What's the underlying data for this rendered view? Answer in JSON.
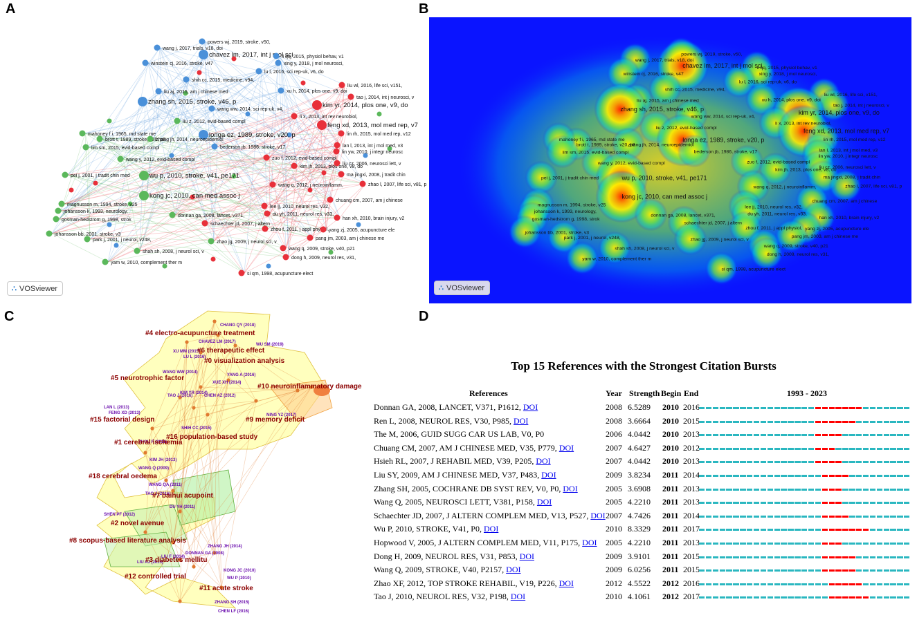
{
  "panel_labels": [
    "A",
    "B",
    "C",
    "D"
  ],
  "vosviewer_label": "VOSviewer",
  "colors": {
    "blue": "#4a90d9",
    "red": "#e8303a",
    "green": "#5bb85b",
    "burst_red": "#ff0000",
    "burst_cyan": "#2ab7c0",
    "cluster_label": "#8b0000",
    "node_label": "#6a0dad"
  },
  "chart_data": [
    {
      "type": "network",
      "panel": "A",
      "node_labels": [
        "powers wj, 2019, stroke, v50,",
        "wang j, 2017, trials, v18, doi",
        "chavez lm, 2017, int j mol sci",
        "li qq, 2015, physiol behav, v1",
        "xing y, 2018, j mol neurosci,",
        "winstein cj, 2016, stroke, v47",
        "lu l, 2016, sci rep-uk, v6, do",
        "shih cc, 2015, medicine, v94,",
        "liu wl, 2016, life sci, v151,",
        "xu h, 2014, plos one, v9, doi",
        "tao j, 2014, int j neurosci, v",
        "liu aj, 2015, am j chinese med",
        "zhang sh, 2015, stroke, v46, p",
        "kim yr, 2014, plos one, v9, do",
        "wang ww, 2014, sci rep-uk, v4,",
        "li x, 2013, int rev neurobiol,",
        "brott t, 1989, stroke, v20, p8",
        "liu z, 2012, evid-based compl",
        "feng xd, 2013, mol med rep, v7",
        "mahoney f i, 1965, md state me",
        "longa ez, 1989, stroke, v20, p",
        "lin rh, 2015, mol med rep, v12",
        "zhang jh, 2014, neuroepidemiol",
        "lan l, 2013, int j mol med, v3",
        "lim sm, 2015, evid-based compl",
        "bederson jb, 1986, stroke, v17",
        "lin yw, 2010, j integr neurosc",
        "wang y, 2012, evid-based compl",
        "zuo f, 2012, evid-based compl",
        "kim jh, 2013, plos one, v8, do",
        "liu cz, 2006, neurosci lett, v",
        "pei j, 2001, j tradit chin med",
        "ma jingxi, 2008, j tradit chin",
        "wu p, 2010, stroke, v41, pe171",
        "zhao l, 2007, life sci, v81, p",
        "wang q, 2012, j neuroinflamm,",
        "kong jc, 2010, can med assoc j",
        "chuang cm, 2007, am j chinese",
        "magnusson m, 1994, stroke, v25",
        "johansson k, 1993, neurology,",
        "donnan ga, 2008, lancet, v371,",
        "lee jj, 2010, neurol res, v32,",
        "gosman-hedstrom g, 1998, strok",
        "du yh, 2011, neurol res, v33,",
        "han xh, 2010, brain injury, v2",
        "johansson bb, 2001, stroke, v3",
        "schaechter jd, 2007, j altern",
        "zhou f, 2011, j appl physiol,",
        "yang zj, 2005, acupuncture ele",
        "park j, 2001, j neurol, v248,",
        "zhao jg, 2009, j neurol sci, v",
        "pang jm, 2003, am j chinese me",
        "shah sh, 2008, j neurol sci, v",
        "wang q, 2009, stroke, v40, p21",
        "dong h, 2009, neurol res, v31,",
        "yam w, 2010, complement ther m",
        "si qm, 1998, acupuncture elect"
      ]
    },
    {
      "type": "heatmap",
      "panel": "B",
      "node_labels": [
        "powers wj, 2019, stroke, v50,",
        "wang j, 2017, trials, v18, doi",
        "chavez lm, 2017, int j mol sci",
        "li qq, 2015, physiol behav, v1",
        "xing y, 2018, j mol neurosci,",
        "winstein cj, 2016, stroke, v47",
        "lu l, 2016, sci rep-uk, v6, do",
        "shih cc, 2015, medicine, v94,",
        "liu wl, 2016, life sci, v151,",
        "xu h, 2014, plos one, v9, doi",
        "tao j, 2014, int j neurosci, v",
        "liu aj, 2015, am j chinese med",
        "zhang sh, 2015, stroke, v46, p",
        "kim yr, 2014, plos one, v9, do",
        "wang ww, 2014, sci rep-uk, v4,",
        "li x, 2013, int rev neurobiol,",
        "brott t, 1989, stroke, v20, p8",
        "liu z, 2012, evid-based compl",
        "feng xd, 2013, mol med rep, v7",
        "mahoney f i, 1965, md state me",
        "longa ez, 1989, stroke, v20, p",
        "lin rh, 2015, mol med rep, v12",
        "zhang jh, 2014, neuroepidemiol",
        "lan l, 2013, int j mol med, v3",
        "lim sm, 2015, evid-based compl",
        "bederson jb, 1986, stroke, v17",
        "lin yw, 2010, j integr neurosc",
        "wang y, 2012, evid-based compl",
        "zuo f, 2012, evid-based compl",
        "kim jh, 2013, plos one, v8, do",
        "liu cz, 2006, neurosci lett, v",
        "pei j, 2001, j tradit chin med",
        "ma jingxi, 2008, j tradit chin",
        "wu p, 2010, stroke, v41, pe171",
        "zhao l, 2007, life sci, v81, p",
        "wang q, 2012, j neuroinflamm,",
        "kong jc, 2010, can med assoc j",
        "chuang cm, 2007, am j chinese",
        "magnusson m, 1994, stroke, v25",
        "johansson k, 1993, neurology,",
        "donnan ga, 2008, lancet, v371,",
        "lee jj, 2010, neurol res, v32,",
        "gosman-hedstrom g, 1998, strok",
        "du yh, 2011, neurol res, v33,",
        "han xh, 2010, brain injury, v2",
        "johansson bb, 2001, stroke, v3",
        "schaechter jd, 2007, j altern",
        "zhou f, 2011, j appl physiol,",
        "yang zj, 2005, acupuncture ele",
        "park j, 2001, j neurol, v248,",
        "zhao jg, 2009, j neurol sci, v",
        "pang jm, 2003, am j chinese me",
        "shah sh, 2008, j neurol sci, v",
        "wang q, 2009, stroke, v40, p21",
        "dong h, 2009, neurol res, v31,",
        "yam w, 2010, complement ther m",
        "si qm, 1998, acupuncture elect"
      ]
    },
    {
      "type": "network",
      "panel": "C",
      "cluster_labels": [
        "#4 electro-acupuncture treatment",
        "#6 therapeutic effect",
        "#0 visualization analysis",
        "#5 neurotrophic factor",
        "#10 neuroinflammatory damage",
        "#9 memory deficit",
        "#15 factorial design",
        "#16 population-based study",
        "#1 cerebral ischemia",
        "#18 cerebral oedema",
        "#7 baihui acupoint",
        "#2 novel avenue",
        "#8 scopus-based literature analysis",
        "#3 diabetes mellitu",
        "#12 controlled trial",
        "#11 acute stroke"
      ],
      "node_labels": [
        "CHANG QY (2018)",
        "CHAVEZ LM (2017)",
        "WU SM (2019)",
        "XU MM (2015)",
        "LU L (2016)",
        "WANG WW (2014)",
        "YANG A (2016)",
        "XUE XH (2014)",
        "KIM YR (2014)",
        "TAO J (2016)",
        "CHEN AZ (2012)",
        "NING YZ (2017)",
        "LAN L (2013)",
        "FENG XD (2013)",
        "SHIH CC (2015)",
        "ZHOU F (2011)",
        "KIM JH (2013)",
        "WANG Q (2009)",
        "WANG QA (2011)",
        "TAO J (2016)",
        "DU YH (2011)",
        "SHEN PF (2012)",
        "ZHANG JH (2014)",
        "DONNAN GA (2008)",
        "LIU F (2014)",
        "LIU AJ (2015)",
        "KONG JC (2010)",
        "WU P (2010)",
        "ZHANG SH (2015)",
        "CHEN LF (2016)"
      ]
    },
    {
      "type": "table",
      "panel": "D",
      "title": "Top 15 References with the Strongest Citation Bursts",
      "columns": [
        "References",
        "Year",
        "Strength",
        "Begin",
        "End",
        "1993 - 2023"
      ],
      "range": [
        1993,
        2023
      ],
      "rows": [
        {
          "ref": "Donnan GA, 2008, LANCET, V371, P1612,",
          "doi": "DOI",
          "year": "2008",
          "strength": "6.5289",
          "begin": "2010",
          "end": "2016"
        },
        {
          "ref": "Ren L, 2008, NEUROL RES, V30, P985,",
          "doi": "DOI",
          "year": "2008",
          "strength": "3.6664",
          "begin": "2010",
          "end": "2015"
        },
        {
          "ref": "The M, 2006, GUID SUGG CAR US LAB, V0, P0",
          "doi": "",
          "year": "2006",
          "strength": "4.0442",
          "begin": "2010",
          "end": "2013"
        },
        {
          "ref": "Chuang CM, 2007, AM J CHINESE MED, V35, P779,",
          "doi": "DOI",
          "year": "2007",
          "strength": "4.6427",
          "begin": "2010",
          "end": "2012"
        },
        {
          "ref": "Hsieh RL, 2007, J REHABIL MED, V39, P205,",
          "doi": "DOI",
          "year": "2007",
          "strength": "4.0442",
          "begin": "2010",
          "end": "2013"
        },
        {
          "ref": "Liu SY, 2009, AM J CHINESE MED, V37, P483,",
          "doi": "DOI",
          "year": "2009",
          "strength": "3.8234",
          "begin": "2011",
          "end": "2014"
        },
        {
          "ref": "Zhang SH, 2005, COCHRANE DB SYST REV, V0, P0,",
          "doi": "DOI",
          "year": "2005",
          "strength": "3.6908",
          "begin": "2011",
          "end": "2013"
        },
        {
          "ref": "Wang Q, 2005, NEUROSCI LETT, V381, P158,",
          "doi": "DOI",
          "year": "2005",
          "strength": "4.2210",
          "begin": "2011",
          "end": "2013"
        },
        {
          "ref": "Schaechter JD, 2007, J ALTERN COMPLEM MED, V13, P527,",
          "doi": "DOI",
          "year": "2007",
          "strength": "4.7426",
          "begin": "2011",
          "end": "2014"
        },
        {
          "ref": "Wu P, 2010, STROKE, V41, P0,",
          "doi": "DOI",
          "year": "2010",
          "strength": "8.3329",
          "begin": "2011",
          "end": "2017"
        },
        {
          "ref": "Hopwood V, 2005, J ALTERN COMPLEM MED, V11, P175,",
          "doi": "DOI",
          "year": "2005",
          "strength": "4.2210",
          "begin": "2011",
          "end": "2013"
        },
        {
          "ref": "Dong H, 2009, NEUROL RES, V31, P853,",
          "doi": "DOI",
          "year": "2009",
          "strength": "3.9101",
          "begin": "2011",
          "end": "2015"
        },
        {
          "ref": "Wang Q, 2009, STROKE, V40, P2157,",
          "doi": "DOI",
          "year": "2009",
          "strength": "6.0256",
          "begin": "2011",
          "end": "2015"
        },
        {
          "ref": "Zhao XF, 2012, TOP STROKE REHABIL, V19, P226,",
          "doi": "DOI",
          "year": "2012",
          "strength": "4.5522",
          "begin": "2012",
          "end": "2016"
        },
        {
          "ref": "Tao J, 2010, NEUROL RES, V32, P198,",
          "doi": "DOI",
          "year": "2010",
          "strength": "4.1061",
          "begin": "2012",
          "end": "2017"
        }
      ]
    }
  ]
}
